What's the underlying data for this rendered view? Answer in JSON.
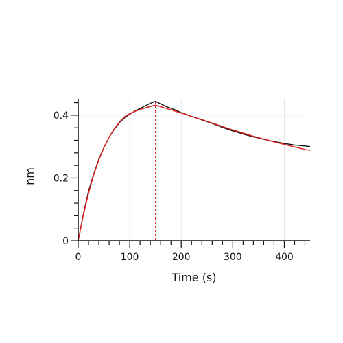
{
  "chart_data": {
    "type": "line",
    "xlabel": "Time (s)",
    "ylabel": "nm",
    "xlim": [
      0,
      450
    ],
    "ylim": [
      0,
      0.45
    ],
    "x_ticks": [
      0,
      100,
      200,
      300,
      400
    ],
    "x_tick_labels": [
      "0",
      "100",
      "200",
      "300",
      "400"
    ],
    "y_ticks": [
      0,
      0.2,
      0.4
    ],
    "y_tick_labels": [
      "0",
      "0.2",
      "0.4"
    ],
    "x_minor_step": 20,
    "y_minor_step": 0.04,
    "grid": true,
    "colors": {
      "measured": "#111111",
      "fit": "#e02020",
      "marker_lines": "#e02020",
      "grid": "#e6e6e6",
      "axis": "#111111"
    },
    "vertical_markers": [
      0,
      150
    ],
    "series": [
      {
        "role": "measured",
        "x": [
          0,
          10,
          20,
          30,
          40,
          50,
          60,
          70,
          80,
          90,
          100,
          110,
          120,
          130,
          140,
          150,
          160,
          170,
          180,
          190,
          200,
          220,
          240,
          260,
          280,
          300,
          320,
          340,
          360,
          380,
          400,
          420,
          440,
          450
        ],
        "y": [
          0.0,
          0.085,
          0.158,
          0.212,
          0.26,
          0.298,
          0.33,
          0.355,
          0.376,
          0.392,
          0.403,
          0.413,
          0.421,
          0.43,
          0.438,
          0.444,
          0.436,
          0.428,
          0.422,
          0.416,
          0.408,
          0.396,
          0.385,
          0.374,
          0.361,
          0.35,
          0.34,
          0.331,
          0.323,
          0.316,
          0.31,
          0.305,
          0.302,
          0.3
        ]
      },
      {
        "role": "fit",
        "x": [
          0,
          10,
          20,
          30,
          40,
          50,
          60,
          70,
          80,
          90,
          100,
          110,
          120,
          130,
          140,
          150,
          160,
          170,
          180,
          190,
          200,
          220,
          240,
          260,
          280,
          300,
          320,
          340,
          360,
          380,
          400,
          420,
          440,
          450
        ],
        "y": [
          0.0,
          0.082,
          0.151,
          0.209,
          0.257,
          0.297,
          0.33,
          0.357,
          0.378,
          0.395,
          0.405,
          0.412,
          0.418,
          0.423,
          0.428,
          0.432,
          0.427,
          0.422,
          0.417,
          0.412,
          0.407,
          0.396,
          0.386,
          0.375,
          0.364,
          0.353,
          0.343,
          0.333,
          0.324,
          0.315,
          0.307,
          0.299,
          0.291,
          0.288
        ]
      }
    ]
  }
}
